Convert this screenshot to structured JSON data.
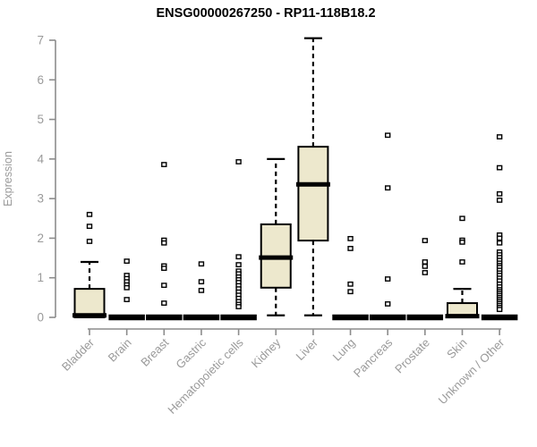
{
  "chart_data": {
    "type": "boxplot",
    "title": "ENSG00000267250 - RP11-118B18.2",
    "ylabel": "Expression",
    "xlabel": "",
    "ylim": [
      0,
      7
    ],
    "yticks": [
      0,
      1,
      2,
      3,
      4,
      5,
      6,
      7
    ],
    "grid": false,
    "legend": false,
    "colors": {
      "box_fill": "#ede8cd",
      "box_stroke": "#000000",
      "axis_line": "#8c8c8c",
      "tick_label": "#9a9a9a",
      "title": "#000000"
    },
    "categories": [
      "Bladder",
      "Brain",
      "Breast",
      "Gastric",
      "Hematopoietic cells",
      "Kidney",
      "Liver",
      "Lung",
      "Pancreas",
      "Prostate",
      "Skin",
      "Unknown / Other"
    ],
    "boxes": [
      {
        "category": "Bladder",
        "low": 0,
        "q1": 0,
        "median": 0.05,
        "q3": 0.72,
        "high": 1.4,
        "outliers": [
          2.6,
          2.3,
          1.92
        ]
      },
      {
        "category": "Brain",
        "low": 0,
        "q1": 0,
        "median": 0,
        "q3": 0,
        "high": 0,
        "outliers": [
          1.42,
          1.06,
          0.98,
          0.9,
          0.82,
          0.75,
          0.45
        ]
      },
      {
        "category": "Breast",
        "low": 0,
        "q1": 0,
        "median": 0,
        "q3": 0,
        "high": 0,
        "outliers": [
          3.86,
          1.95,
          1.88,
          1.3,
          1.24,
          0.81,
          0.36
        ]
      },
      {
        "category": "Gastric",
        "low": 0,
        "q1": 0,
        "median": 0,
        "q3": 0,
        "high": 0,
        "outliers": [
          1.35,
          0.9,
          0.68
        ]
      },
      {
        "category": "Hematopoietic cells",
        "low": 0,
        "q1": 0,
        "median": 0,
        "q3": 0,
        "high": 0,
        "outliers": [
          3.93,
          1.53,
          1.33,
          1.17,
          1.1,
          1.02,
          0.95,
          0.88,
          0.8,
          0.72,
          0.64,
          0.56,
          0.48,
          0.4,
          0.33,
          0.27
        ]
      },
      {
        "category": "Kidney",
        "low": 0.05,
        "q1": 0.75,
        "median": 1.51,
        "q3": 2.35,
        "high": 4.0,
        "outliers": []
      },
      {
        "category": "Liver",
        "low": 0.05,
        "q1": 1.94,
        "median": 3.36,
        "q3": 4.31,
        "high": 7.05,
        "outliers": []
      },
      {
        "category": "Lung",
        "low": 0,
        "q1": 0,
        "median": 0,
        "q3": 0,
        "high": 0,
        "outliers": [
          1.99,
          1.74,
          0.84,
          0.65
        ]
      },
      {
        "category": "Pancreas",
        "low": 0,
        "q1": 0,
        "median": 0,
        "q3": 0,
        "high": 0,
        "outliers": [
          4.6,
          3.27,
          0.97,
          0.34
        ]
      },
      {
        "category": "Prostate",
        "low": 0,
        "q1": 0,
        "median": 0,
        "q3": 0,
        "high": 0,
        "outliers": [
          1.94,
          1.4,
          1.29,
          1.13
        ]
      },
      {
        "category": "Skin",
        "low": 0,
        "q1": 0,
        "median": 0.03,
        "q3": 0.36,
        "high": 0.72,
        "outliers": [
          2.5,
          1.95,
          1.9,
          1.4
        ]
      },
      {
        "category": "Unknown / Other",
        "low": 0,
        "q1": 0,
        "median": 0,
        "q3": 0,
        "high": 0,
        "outliers": [
          4.56,
          3.78,
          3.12,
          2.96,
          2.08,
          2.0,
          1.88,
          1.65,
          1.58,
          1.51,
          1.44,
          1.37,
          1.31,
          1.26,
          1.19,
          1.12,
          1.06,
          0.99,
          0.92,
          0.84,
          0.77,
          0.7,
          0.65,
          0.6,
          0.55,
          0.5,
          0.45,
          0.4,
          0.35,
          0.3,
          0.25,
          0.2
        ]
      }
    ]
  }
}
